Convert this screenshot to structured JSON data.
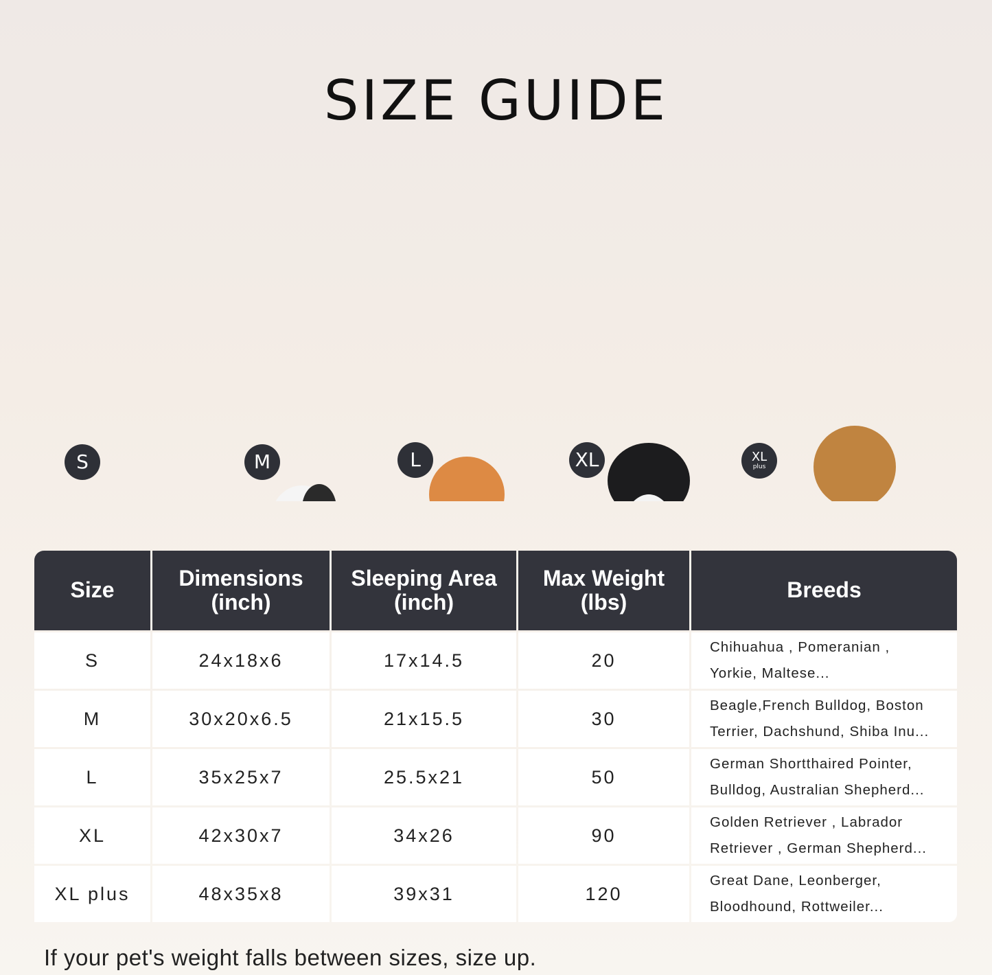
{
  "title": "SIZE GUIDE",
  "dogs": [
    {
      "badge": "S",
      "color": "#d98a3e"
    },
    {
      "badge": "M",
      "color": "#eeeeee"
    },
    {
      "badge": "L",
      "color": "#d9823f"
    },
    {
      "badge": "XL",
      "color": "#1c1c1e"
    },
    {
      "badge": "XL",
      "badge_sub": "plus",
      "color": "#c8914f"
    }
  ],
  "table": {
    "headers": [
      "Size",
      "Dimensions\n(inch)",
      "Sleeping Area\n(inch)",
      "Max Weight\n(lbs)",
      "Breeds"
    ],
    "rows": [
      {
        "size": "S",
        "dimensions": "24x18x6",
        "sleeping_area": "17x14.5",
        "max_weight": "20",
        "breeds": "Chihuahua , Pomeranian ,\nYorkie, Maltese..."
      },
      {
        "size": "M",
        "dimensions": "30x20x6.5",
        "sleeping_area": "21x15.5",
        "max_weight": "30",
        "breeds": "Beagle,French Bulldog, Boston\nTerrier, Dachshund, Shiba Inu..."
      },
      {
        "size": "L",
        "dimensions": "35x25x7",
        "sleeping_area": "25.5x21",
        "max_weight": "50",
        "breeds": "German Shortthaired Pointer,\nBulldog, Australian Shepherd..."
      },
      {
        "size": "XL",
        "dimensions": "42x30x7",
        "sleeping_area": "34x26",
        "max_weight": "90",
        "breeds": "Golden Retriever , Labrador\nRetriever , German Shepherd..."
      },
      {
        "size": "XL plus",
        "dimensions": "48x35x8",
        "sleeping_area": "39x31",
        "max_weight": "120",
        "breeds": "Great Dane, Leonberger,\nBloodhound, Rottweiler..."
      }
    ]
  },
  "note": "If your pet's weight falls between sizes, size up.",
  "colors": {
    "header_bg": "#33343c",
    "badge_bg": "#2e3037"
  }
}
